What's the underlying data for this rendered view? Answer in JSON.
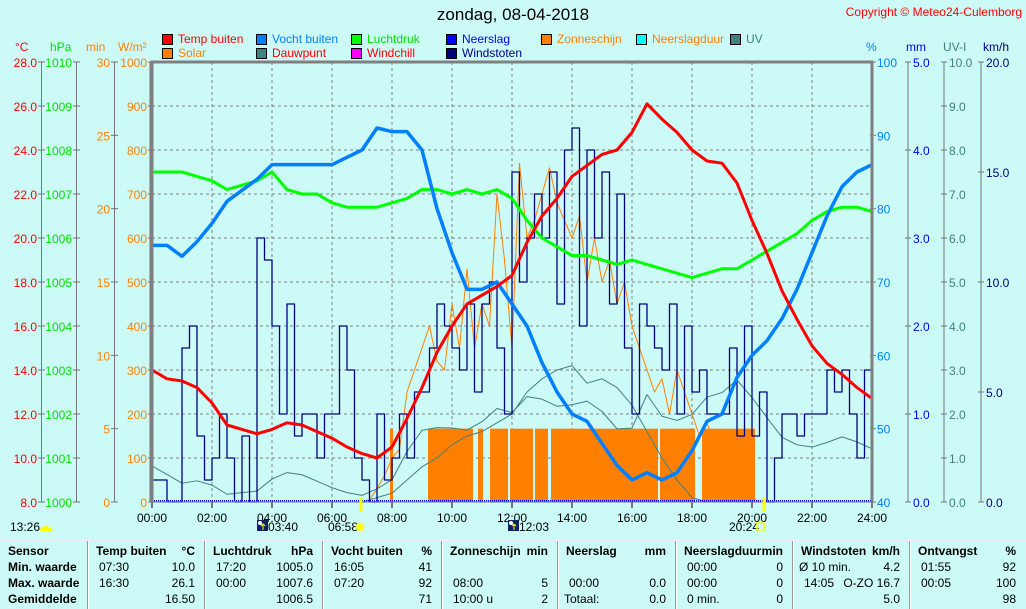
{
  "chart_data": {
    "type": "line",
    "title": "zondag, 08-04-2018",
    "copyright": "Copyright © Meteo24-Culemborg",
    "x_ticks": [
      "00:00",
      "02:00",
      "04:00",
      "06:00",
      "08:00",
      "10:00",
      "12:00",
      "14:00",
      "16:00",
      "18:00",
      "20:00",
      "22:00",
      "24:00"
    ],
    "legend": [
      {
        "label": "Temp buiten",
        "color": "#ff0000",
        "text_color": "#ff0000"
      },
      {
        "label": "Vocht buiten",
        "color": "#0080ff",
        "text_color": "#0080ff"
      },
      {
        "label": "Luchtdruk",
        "color": "#00ff00",
        "text_color": "#00e000"
      },
      {
        "label": "Neerslag",
        "color": "#0000ff",
        "text_color": "#0000ff"
      },
      {
        "label": "Zonneschijn",
        "color": "#ff8000",
        "text_color": "#ff8000"
      },
      {
        "label": "Neerslagduur",
        "color": "#00ffff",
        "text_color": "#ff8000"
      },
      {
        "label": "UV",
        "color": "#408080",
        "text_color": "#408080"
      },
      {
        "label": "Solar",
        "color": "#ff8000",
        "text_color": "#ff8000"
      },
      {
        "label": "Dauwpunt",
        "color": "#408080",
        "text_color": "#ff0000"
      },
      {
        "label": "Windchill",
        "color": "#ff00ff",
        "text_color": "#ff0000"
      },
      {
        "label": "Windstoten",
        "color": "#000080",
        "text_color": "#000080"
      }
    ],
    "axes": {
      "temp": {
        "unit": "°C",
        "ticks": [
          "28.0",
          "26.0",
          "24.0",
          "22.0",
          "20.0",
          "18.0",
          "16.0",
          "14.0",
          "12.0",
          "10.0",
          "8.0"
        ],
        "range": [
          8,
          28
        ],
        "color": "#ff0000"
      },
      "pressure": {
        "unit": "hPa",
        "ticks": [
          "1010",
          "1009",
          "1008",
          "1007",
          "1006",
          "1005",
          "1004",
          "1003",
          "1002",
          "1001",
          "1000"
        ],
        "range": [
          1000,
          1010
        ],
        "color": "#00e000"
      },
      "minutes": {
        "unit": "min",
        "ticks": [
          "30",
          "25",
          "20",
          "15",
          "10",
          "5",
          "0"
        ],
        "range": [
          0,
          30
        ],
        "color": "#ff8000"
      },
      "solar": {
        "unit": "W/m²",
        "ticks": [
          "1000",
          "900",
          "800",
          "700",
          "600",
          "500",
          "400",
          "300",
          "200",
          "100",
          "0"
        ],
        "range": [
          0,
          1000
        ],
        "color": "#ff8000"
      },
      "humidity": {
        "unit": "%",
        "ticks": [
          "100",
          "90",
          "80",
          "70",
          "60",
          "50",
          "40"
        ],
        "range": [
          40,
          100
        ],
        "color": "#0080ff"
      },
      "rain": {
        "unit": "mm",
        "ticks": [
          "5.0",
          "4.0",
          "3.0",
          "2.0",
          "1.0",
          "0.0"
        ],
        "range": [
          0,
          5
        ],
        "color": "#0000ff"
      },
      "uv": {
        "unit": "UV-I",
        "ticks": [
          "10.0",
          "9.0",
          "8.0",
          "7.0",
          "6.0",
          "5.0",
          "4.0",
          "3.0",
          "2.0",
          "1.0",
          "0.0"
        ],
        "range": [
          0,
          10
        ],
        "color": "#408080"
      },
      "wind": {
        "unit": "km/h",
        "ticks": [
          "20.0",
          "15.0",
          "10.0",
          "5.0",
          "0.0"
        ],
        "range": [
          0,
          20
        ],
        "color": "#000080"
      }
    },
    "series_30min": {
      "temp": [
        14.0,
        13.6,
        13.5,
        13.2,
        12.5,
        11.5,
        11.3,
        11.1,
        11.3,
        11.6,
        11.5,
        11.2,
        10.9,
        10.5,
        10.2,
        10.0,
        10.5,
        11.8,
        13.2,
        14.8,
        16.0,
        17.0,
        17.4,
        17.8,
        18.3,
        19.8,
        21.0,
        21.8,
        22.8,
        23.3,
        23.8,
        24.0,
        24.8,
        26.1,
        25.4,
        24.8,
        24.0,
        23.5,
        23.4,
        22.5,
        20.8,
        19.3,
        17.6,
        16.3,
        15.1,
        14.3,
        13.8,
        13.2,
        12.7
      ],
      "pressure": [
        1007.5,
        1007.5,
        1007.5,
        1007.4,
        1007.3,
        1007.1,
        1007.2,
        1007.3,
        1007.5,
        1007.1,
        1007.0,
        1007.0,
        1006.8,
        1006.7,
        1006.7,
        1006.7,
        1006.8,
        1006.9,
        1007.1,
        1007.1,
        1007.0,
        1007.1,
        1007.0,
        1007.1,
        1006.9,
        1006.4,
        1006.0,
        1005.8,
        1005.6,
        1005.6,
        1005.5,
        1005.4,
        1005.5,
        1005.4,
        1005.3,
        1005.2,
        1005.1,
        1005.2,
        1005.3,
        1005.3,
        1005.5,
        1005.7,
        1005.9,
        1006.1,
        1006.4,
        1006.6,
        1006.7,
        1006.7,
        1006.6
      ],
      "humidity": [
        75,
        75,
        73.5,
        75.5,
        78,
        81,
        82.5,
        84,
        86,
        86,
        86,
        86,
        86,
        87,
        88,
        91,
        90.5,
        90.5,
        88,
        80,
        74,
        69,
        69,
        70,
        67,
        64,
        59,
        55,
        52,
        51,
        48,
        45,
        43,
        44,
        43,
        44,
        47,
        51,
        52,
        57,
        60,
        62,
        65,
        69,
        74,
        79,
        83,
        85,
        86
      ],
      "uv": [
        0,
        0,
        0,
        0,
        0,
        0,
        0,
        0,
        0,
        0,
        0,
        0,
        0,
        0,
        0,
        0.1,
        0.2,
        0.5,
        0.8,
        1.0,
        1.3,
        1.5,
        1.6,
        1.8,
        2.0,
        2.5,
        2.8,
        3.0,
        3.1,
        2.7,
        2.8,
        2.6,
        2.2,
        1.6,
        1.0,
        0.5,
        0.1,
        0,
        0,
        0,
        0,
        0,
        0,
        0,
        0,
        0,
        0,
        0,
        0
      ]
    },
    "series_15min": {
      "solar": [
        0,
        0,
        0,
        0,
        0,
        0,
        0,
        0,
        0,
        0,
        0,
        0,
        0,
        0,
        0,
        0,
        0,
        0,
        0,
        0,
        0,
        0,
        0,
        0,
        0,
        0,
        0,
        0,
        0,
        5,
        30,
        60,
        100,
        120,
        250,
        300,
        350,
        400,
        320,
        300,
        450,
        350,
        530,
        350,
        450,
        400,
        700,
        550,
        350,
        770,
        600,
        640,
        700,
        760,
        680,
        640,
        600,
        650,
        500,
        600,
        500,
        550,
        450,
        500,
        400,
        350,
        300,
        250,
        280,
        200,
        300,
        250,
        200,
        150,
        180,
        130,
        100,
        120,
        80,
        40,
        10,
        0,
        0,
        0,
        0,
        0,
        0,
        0,
        0,
        0,
        0,
        0,
        0,
        0,
        0,
        0,
        0
      ],
      "windstoten": [
        1,
        1,
        0,
        0,
        7,
        8,
        3,
        1,
        2,
        4,
        2,
        0,
        3,
        0,
        12,
        11,
        8,
        4,
        9,
        3,
        4,
        4,
        2,
        4,
        4,
        8,
        6,
        2,
        1,
        0,
        4,
        1,
        2,
        4,
        2,
        5,
        5,
        7,
        9,
        8,
        7,
        6,
        9,
        5,
        9,
        10,
        7,
        4,
        15,
        10,
        12,
        14,
        12,
        15,
        9,
        16,
        17,
        8,
        16,
        12,
        15,
        9,
        14,
        7,
        4,
        9,
        8,
        7,
        6,
        9,
        4,
        8,
        5,
        6,
        4,
        4,
        4,
        7,
        3,
        8,
        3,
        5,
        0,
        2,
        4,
        4,
        3,
        4,
        4,
        4,
        6,
        5,
        6,
        4,
        2,
        6,
        6
      ],
      "neerslag": []
    },
    "zonneschijn_intervals": [
      [
        "07:56",
        "08:02"
      ],
      [
        "09:12",
        "10:42"
      ],
      [
        "10:52",
        "11:02"
      ],
      [
        "11:16",
        "11:52"
      ],
      [
        "11:56",
        "12:42"
      ],
      [
        "12:46",
        "13:12"
      ],
      [
        "13:18",
        "16:52"
      ],
      [
        "16:56",
        "18:06"
      ],
      [
        "18:20",
        "20:06"
      ]
    ],
    "zonneschijn_value_min": 5,
    "astro": {
      "now": "13:26",
      "moonrise": "03:40",
      "sunrise": "06:58",
      "moonset": "12:03",
      "sunset": "20:24"
    }
  },
  "table": {
    "groups": [
      {
        "h1": "Sensor",
        "h2": "",
        "rows": [
          [
            "Min. waarde",
            ""
          ],
          [
            "Max. waarde",
            ""
          ],
          [
            "Gemiddelde",
            ""
          ]
        ],
        "label": true
      },
      {
        "h1": "Temp buiten",
        "h2": "°C",
        "rows": [
          [
            "07:30",
            "10.0"
          ],
          [
            "16:30",
            "26.1"
          ],
          [
            "",
            "16.50"
          ]
        ]
      },
      {
        "h1": "Luchtdruk",
        "h2": "hPa",
        "rows": [
          [
            "17:20",
            "1005.0"
          ],
          [
            "00:00",
            "1007.6"
          ],
          [
            "",
            "1006.5"
          ]
        ]
      },
      {
        "h1": "Vocht buiten",
        "h2": "%",
        "rows": [
          [
            "16:05",
            "41"
          ],
          [
            "07:20",
            "92"
          ],
          [
            "",
            "71"
          ]
        ]
      },
      {
        "h1": "Zonneschijn",
        "h2": "min",
        "rows": [
          [
            "",
            ""
          ],
          [
            "08:00",
            "5"
          ],
          [
            "10:00 u",
            "2"
          ]
        ]
      },
      {
        "h1": "Neerslag",
        "h2": "mm",
        "rows": [
          [
            "",
            ""
          ],
          [
            "00:00",
            "0.0"
          ],
          [
            "Totaal:",
            "0.0"
          ]
        ]
      },
      {
        "h1": "Neerslagduur",
        "h2": "min",
        "rows": [
          [
            "00:00",
            "0"
          ],
          [
            "00:00",
            "0"
          ],
          [
            "0 min.",
            "0"
          ]
        ]
      },
      {
        "h1": "Windstoten",
        "h2": "km/h",
        "rows": [
          [
            "Ø 10 min.",
            "4.2"
          ],
          [
            "14:05",
            "O-ZO 16.7"
          ],
          [
            "",
            "5.0"
          ]
        ]
      },
      {
        "h1": "Ontvangst",
        "h2": "%",
        "rows": [
          [
            "01:55",
            "92"
          ],
          [
            "00:05",
            "100"
          ],
          [
            "",
            "98"
          ]
        ]
      }
    ]
  }
}
